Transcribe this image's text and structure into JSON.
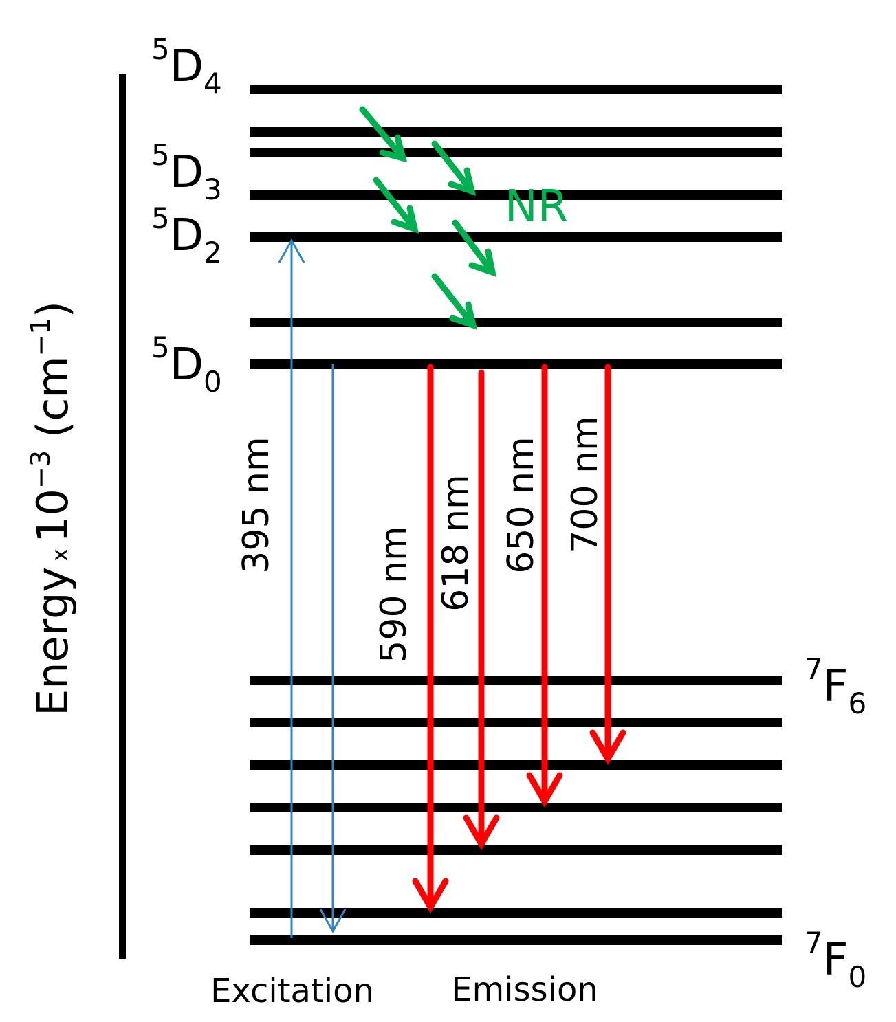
{
  "axis_label": {
    "text": "Energy",
    "times": "x",
    "base": "10",
    "exponent": "−3",
    "unit_open": "(cm",
    "unit_exponent": "−1",
    "unit_close": ")"
  },
  "level_labels": [
    {
      "sup": "5",
      "main": "D",
      "sub": "4"
    },
    {
      "sup": "5",
      "main": "D",
      "sub": "3"
    },
    {
      "sup": "5",
      "main": "D",
      "sub": "2"
    },
    {
      "sup": "5",
      "main": "D",
      "sub": "0"
    },
    {
      "sup": "7",
      "main": "F",
      "sub": "6"
    },
    {
      "sup": "7",
      "main": "F",
      "sub": "0"
    }
  ],
  "transitions": [
    "395 nm",
    "590 nm",
    "618 nm",
    "650 nm",
    "700 nm"
  ],
  "nr_label": "NR",
  "excitation_label": "Excitation",
  "emission_label": "Emission"
}
